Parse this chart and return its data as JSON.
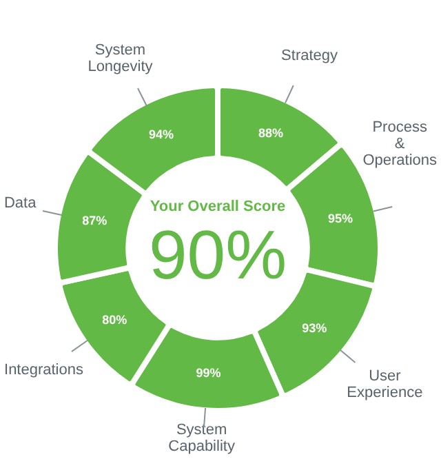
{
  "chart_data": {
    "type": "donut",
    "values": [
      88,
      95,
      93,
      99,
      80,
      87,
      94
    ],
    "categories": [
      "Strategy",
      "Process & Operations",
      "User Experience",
      "System Capability",
      "Integrations",
      "Data",
      "System Longevity"
    ],
    "value_labels": [
      "88%",
      "95%",
      "93%",
      "99%",
      "80%",
      "87%",
      "94%"
    ],
    "color": "#63b946",
    "annotations": [
      "Your Overall Score",
      "90%"
    ]
  }
}
